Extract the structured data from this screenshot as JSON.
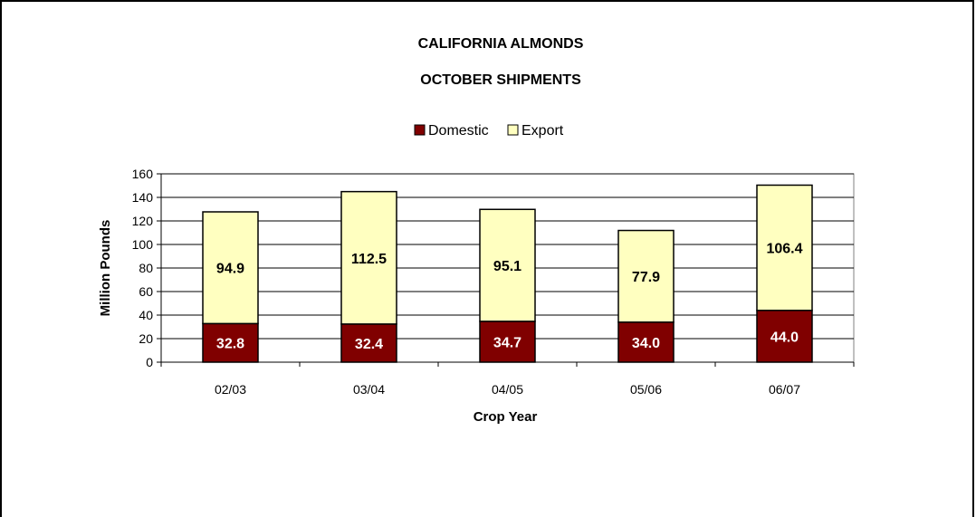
{
  "chart_data": {
    "type": "bar",
    "stacked": true,
    "title": "CALIFORNIA ALMONDS",
    "subtitle": "OCTOBER SHIPMENTS",
    "xlabel": "Crop Year",
    "ylabel": "Million Pounds",
    "categories": [
      "02/03",
      "03/04",
      "04/05",
      "05/06",
      "06/07"
    ],
    "series": [
      {
        "name": "Domestic",
        "color": "#800000",
        "label_color": "#ffffff",
        "values": [
          32.8,
          32.4,
          34.7,
          34.0,
          44.0
        ],
        "labels": [
          "32.8",
          "32.4",
          "34.7",
          "34.0",
          "44.0"
        ]
      },
      {
        "name": "Export",
        "color": "#ffffc0",
        "label_color": "#000000",
        "values": [
          94.9,
          112.5,
          95.1,
          77.9,
          106.4
        ],
        "labels": [
          "94.9",
          "112.5",
          "95.1",
          "77.9",
          "106.4"
        ]
      }
    ],
    "ylim": [
      0,
      160
    ],
    "yticks": [
      0,
      20,
      40,
      60,
      80,
      100,
      120,
      140,
      160
    ],
    "ytick_labels": [
      "0",
      "20",
      "40",
      "60",
      "80",
      "100",
      "120",
      "140",
      "160"
    ],
    "grid": true,
    "legend_position": "top-center"
  }
}
